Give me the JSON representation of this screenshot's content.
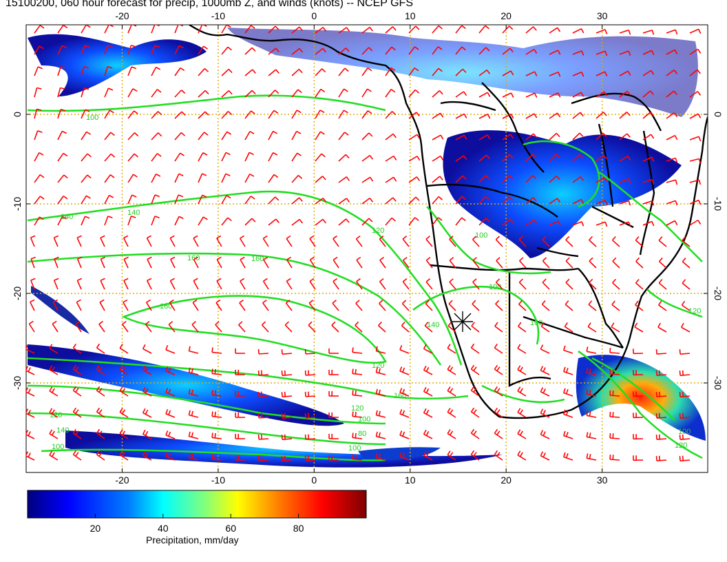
{
  "title": "15100200, 060 hour forecast for precip, 1000mb Z, and winds (knots) -- NCEP GFS",
  "map": {
    "lon_range": [
      -30,
      41
    ],
    "lat_range": [
      -40,
      10
    ],
    "lon_ticks": [
      "-20",
      "-10",
      "0",
      "10",
      "20",
      "30"
    ],
    "lat_ticks": [
      "0",
      "-10",
      "-20",
      "-30"
    ],
    "grid_lons": [
      -20,
      -10,
      0,
      10,
      20,
      30
    ],
    "grid_lats": [
      0,
      -10,
      -20,
      -30
    ],
    "contour_labels": [
      "100",
      "140",
      "140",
      "160",
      "160",
      "160",
      "120",
      "120",
      "100",
      "100",
      "100",
      "120",
      "140",
      "160",
      "120",
      "100",
      "80",
      "100",
      "120",
      "140",
      "100",
      "120",
      "100"
    ],
    "colors": {
      "wind_barbs": "#ff0000",
      "contours": "#22dd22",
      "coast": "#000000",
      "grid": "#e0a800"
    }
  },
  "colorbar": {
    "tick_labels": [
      "20",
      "40",
      "60",
      "80"
    ],
    "tick_values": [
      20,
      40,
      60,
      80
    ],
    "range": [
      0,
      100
    ],
    "caption": "Precipitation, mm/day",
    "colors": [
      "#00007f",
      "#0000ff",
      "#007fff",
      "#00ffff",
      "#7fff7f",
      "#ffff00",
      "#ff7f00",
      "#ff0000",
      "#7f0000"
    ]
  }
}
